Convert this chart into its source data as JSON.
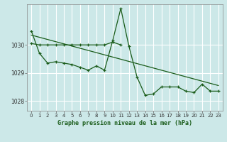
{
  "title": "Graphe pression niveau de la mer (hPa)",
  "background_color": "#cce8e8",
  "grid_color": "#ffffff",
  "line_color": "#1a5c1a",
  "ylim": [
    1027.65,
    1031.45
  ],
  "xlim": [
    -0.5,
    23.5
  ],
  "yticks": [
    1028,
    1029,
    1030
  ],
  "xticks": [
    0,
    1,
    2,
    3,
    4,
    5,
    6,
    7,
    8,
    9,
    10,
    11,
    12,
    13,
    14,
    15,
    16,
    17,
    18,
    19,
    20,
    21,
    22,
    23
  ],
  "flat_line": [
    1030.05,
    1030.0,
    1030.0,
    1030.0,
    1030.0,
    1030.0,
    1030.0,
    1030.0,
    1030.0,
    1030.0,
    1030.1,
    1030.0,
    null,
    null,
    null,
    null,
    null,
    null,
    null,
    null,
    null,
    null,
    null,
    null
  ],
  "jagged_line": [
    1030.5,
    1029.7,
    1029.35,
    1029.4,
    1029.35,
    1029.3,
    1029.2,
    1029.1,
    1029.25,
    1029.1,
    1030.15,
    1031.3,
    1029.95,
    1028.85,
    1028.2,
    1028.25,
    1028.5,
    1028.5,
    1028.5,
    1028.35,
    1028.3,
    1028.6,
    1028.35,
    1028.35
  ],
  "trend_x": [
    0,
    23
  ],
  "trend_y": [
    1030.35,
    1028.55
  ]
}
